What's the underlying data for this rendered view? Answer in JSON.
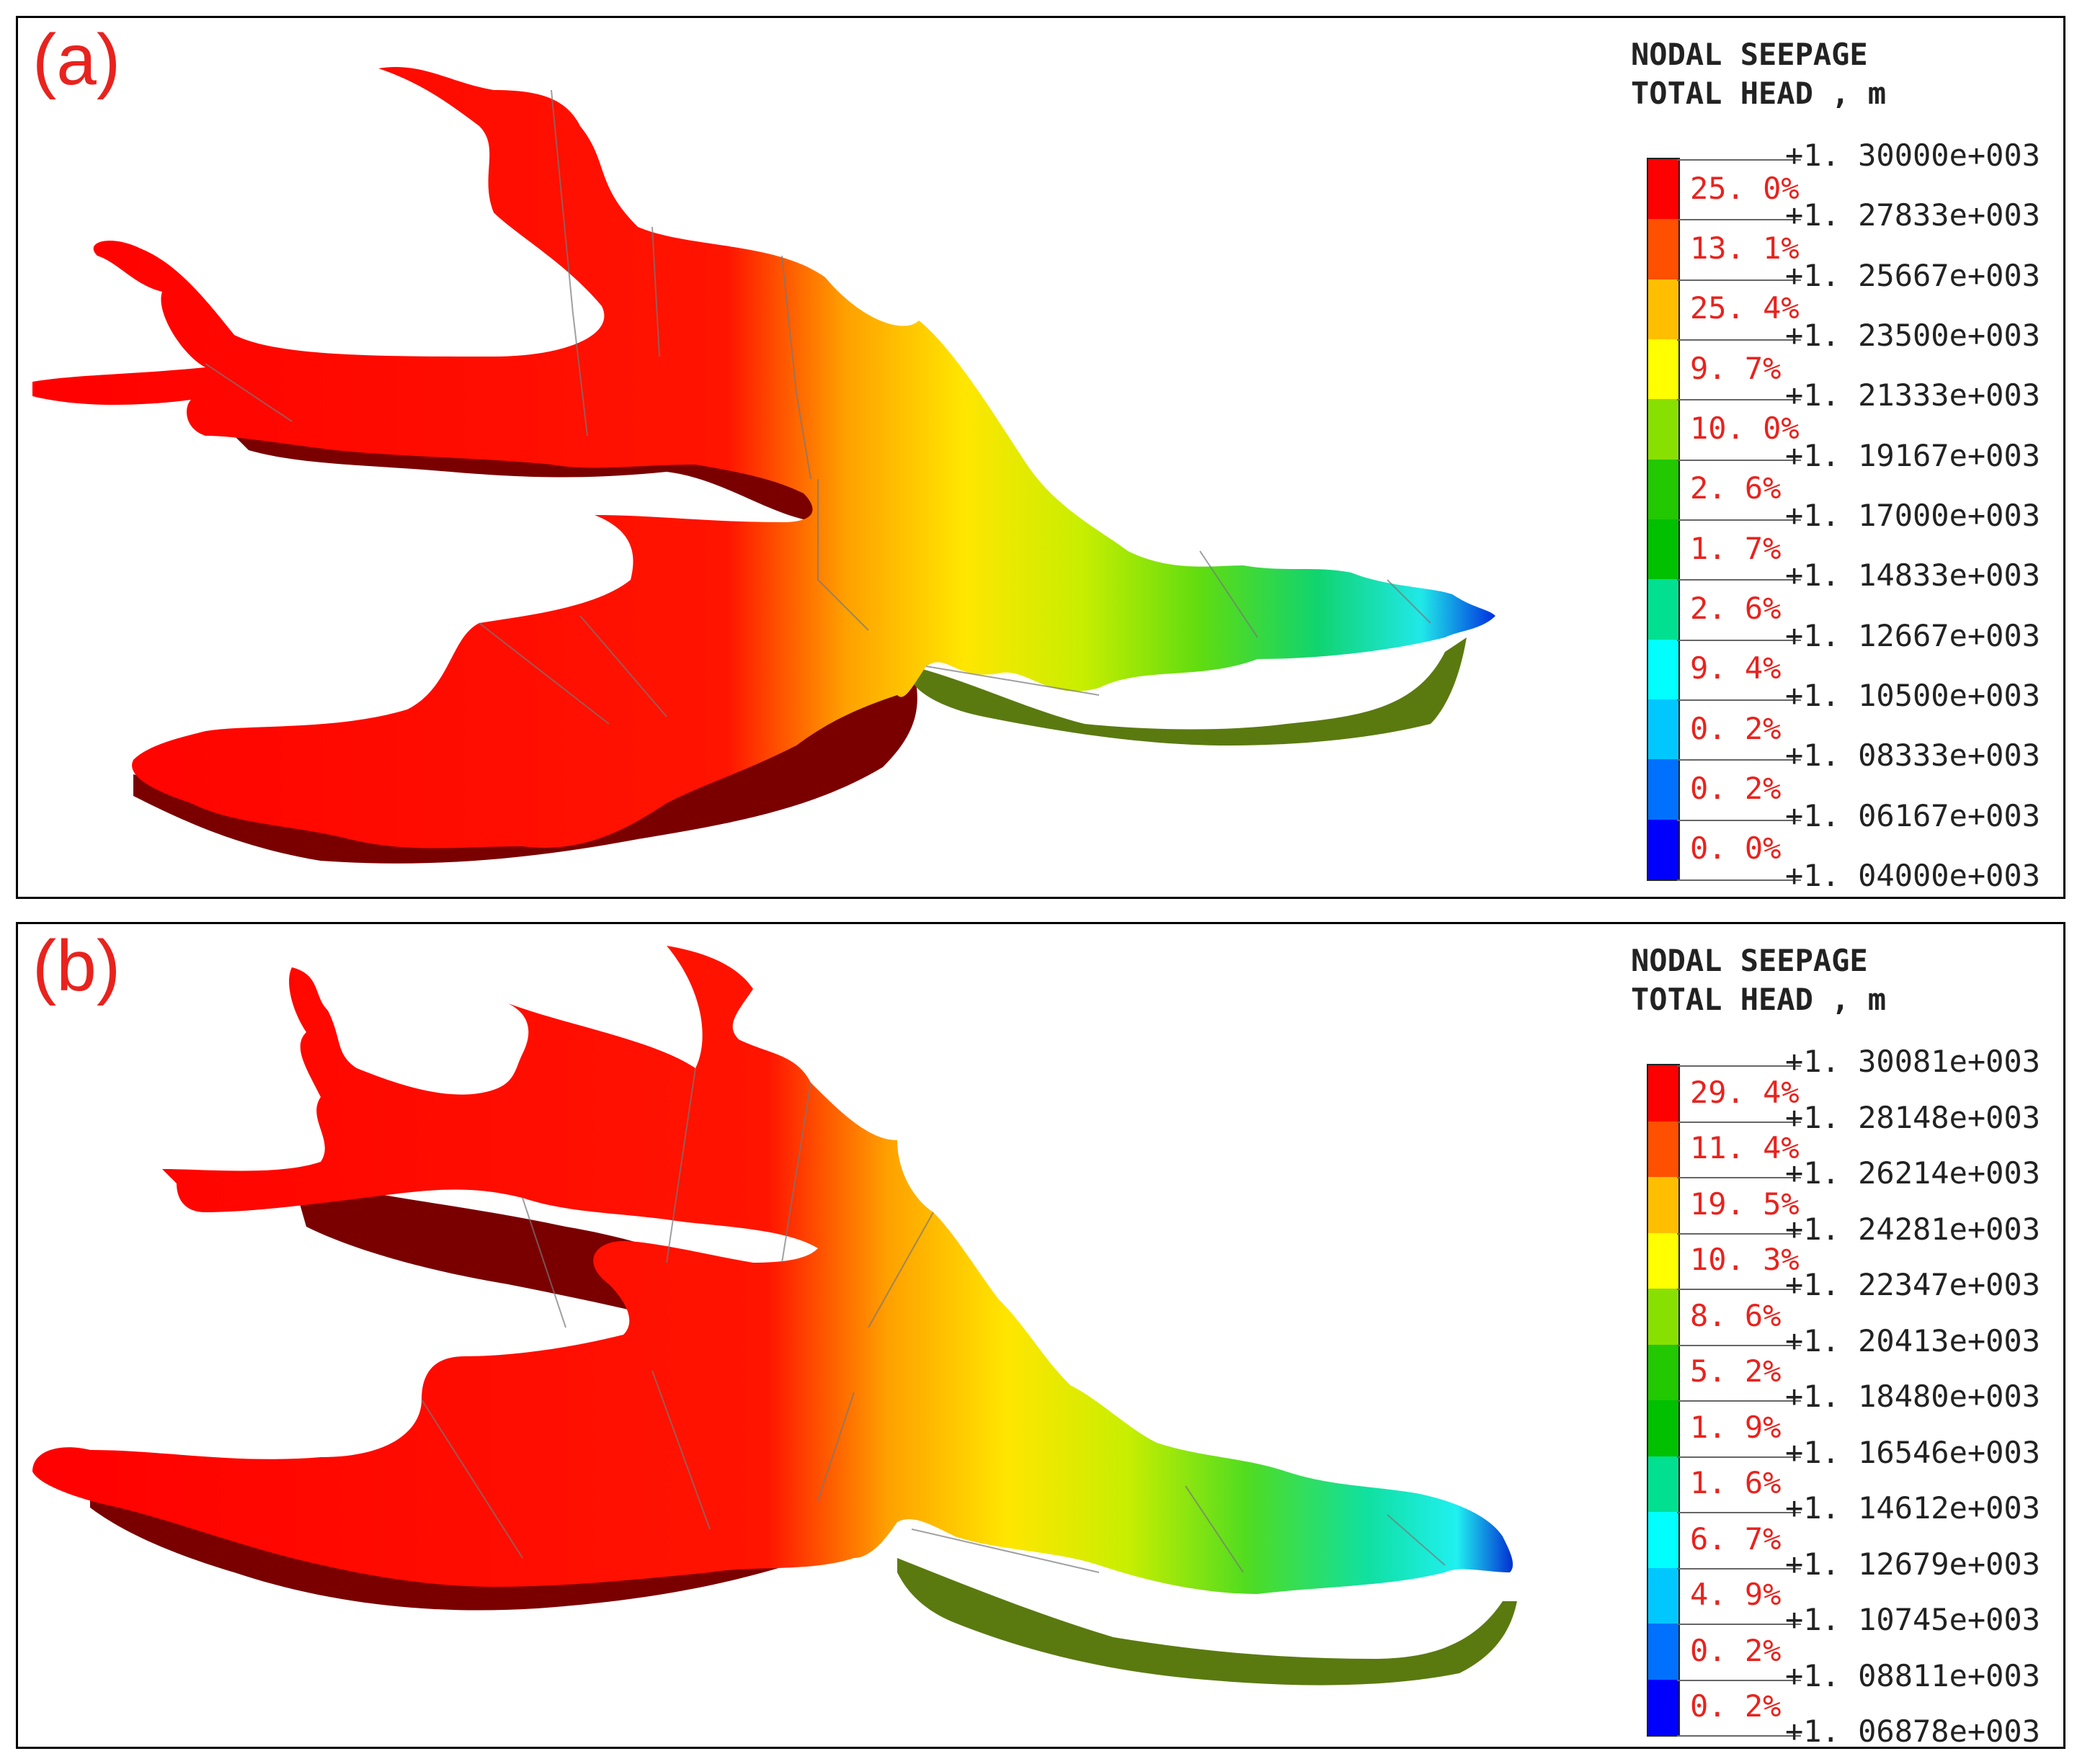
{
  "colors": {
    "bands": [
      "#ff0000",
      "#ff5000",
      "#ffbf00",
      "#ffff00",
      "#88e000",
      "#22c800",
      "#00c000",
      "#00e090",
      "#00ffff",
      "#00c8ff",
      "#0070ff",
      "#0000ff"
    ],
    "shadow": "#7a0000",
    "label": "#e8231e",
    "mesh": "#777777"
  },
  "panels": [
    {
      "id": "a",
      "label": "(a)",
      "legend": {
        "title_line1": "NODAL SEEPAGE",
        "title_line2": "TOTAL HEAD , m",
        "values": [
          "+1. 30000e+003",
          "+1. 27833e+003",
          "+1. 25667e+003",
          "+1. 23500e+003",
          "+1. 21333e+003",
          "+1. 19167e+003",
          "+1. 17000e+003",
          "+1. 14833e+003",
          "+1. 12667e+003",
          "+1. 10500e+003",
          "+1. 08333e+003",
          "+1. 06167e+003",
          "+1. 04000e+003"
        ],
        "percentages": [
          "25. 0%",
          "13. 1%",
          "25. 4%",
          "9. 7%",
          "10. 0%",
          "2. 6%",
          "1. 7%",
          "2. 6%",
          "9. 4%",
          "0. 2%",
          "0. 2%",
          "0. 0%"
        ]
      }
    },
    {
      "id": "b",
      "label": "(b)",
      "legend": {
        "title_line1": "NODAL SEEPAGE",
        "title_line2": "TOTAL HEAD , m",
        "values": [
          "+1. 30081e+003",
          "+1. 28148e+003",
          "+1. 26214e+003",
          "+1. 24281e+003",
          "+1. 22347e+003",
          "+1. 20413e+003",
          "+1. 18480e+003",
          "+1. 16546e+003",
          "+1. 14612e+003",
          "+1. 12679e+003",
          "+1. 10745e+003",
          "+1. 08811e+003",
          "+1. 06878e+003"
        ],
        "percentages": [
          "29. 4%",
          "11. 4%",
          "19. 5%",
          "10. 3%",
          "8. 6%",
          "5. 2%",
          "1. 9%",
          "1. 6%",
          "6. 7%",
          "4. 9%",
          "0. 2%",
          "0. 2%"
        ]
      }
    }
  ]
}
